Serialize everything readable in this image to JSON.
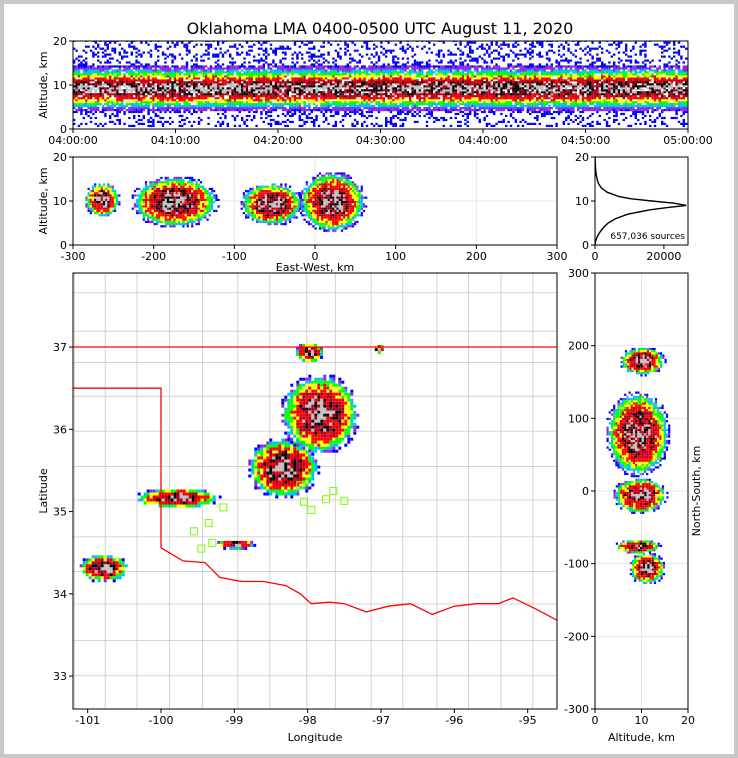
{
  "title": "Oklahoma LMA 0400-0500 UTC August 11, 2020",
  "colors": {
    "density_scale": [
      "#ffffff",
      "#0000ff",
      "#8a2be2",
      "#00bfff",
      "#00ff00",
      "#ffff00",
      "#ff0000",
      "#b00020",
      "#000000",
      "#c0c0c0"
    ],
    "state_border": "#ff0000",
    "county_border": "#c8c8c8",
    "station_marker": "#7cfc00"
  },
  "chart_data": [
    {
      "id": "time_height",
      "type": "heatmap",
      "xlabel": "",
      "ylabel": "Altitude, km",
      "xlim": [
        "04:00:00",
        "05:00:00"
      ],
      "ylim": [
        0,
        20
      ],
      "xticks": [
        "04:00:00",
        "04:10:00",
        "04:20:00",
        "04:30:00",
        "04:40:00",
        "04:50:00",
        "05:00:00"
      ],
      "yticks": [
        0,
        10,
        20
      ],
      "description_values": {
        "peak_density_altitude_km": 9,
        "source_top_km": 20
      }
    },
    {
      "id": "ew_height",
      "type": "heatmap",
      "xlabel": "East-West, km",
      "ylabel": "Altitude, km",
      "xlim": [
        -300,
        300
      ],
      "ylim": [
        0,
        20
      ],
      "xticks": [
        -300,
        -200,
        -100,
        0,
        100,
        200,
        300
      ],
      "yticks": [
        0,
        10,
        20
      ],
      "blobs": [
        {
          "x": -265,
          "y": 10.5,
          "width_km": 45,
          "height_km": 8
        },
        {
          "x": -175,
          "y": 10,
          "width_km": 110,
          "height_km": 12
        },
        {
          "x": -55,
          "y": 9.5,
          "width_km": 80,
          "height_km": 10
        },
        {
          "x": 20,
          "y": 10,
          "width_km": 85,
          "height_km": 14
        }
      ]
    },
    {
      "id": "altitude_histogram",
      "type": "line",
      "xlabel": "",
      "ylabel": "",
      "xlim": [
        0,
        27000
      ],
      "ylim": [
        0,
        20
      ],
      "xticks": [
        0,
        20000
      ],
      "yticks": [
        0,
        10,
        20
      ],
      "annotation": "657,036 sources",
      "peak": {
        "altitude_km": 9,
        "count": 26500
      },
      "series": [
        {
          "y": [
            0.2,
            1,
            2,
            3,
            4,
            5,
            6,
            7,
            8,
            8.5,
            9,
            9.5,
            10,
            10.5,
            11,
            12,
            13,
            14,
            15,
            16,
            17,
            18,
            19,
            20
          ],
          "x": [
            50,
            200,
            700,
            1500,
            2500,
            3800,
            6000,
            9500,
            16000,
            21000,
            26500,
            23000,
            16500,
            10500,
            7000,
            3500,
            1800,
            1000,
            600,
            350,
            200,
            120,
            60,
            30
          ]
        }
      ]
    },
    {
      "id": "plan_view",
      "type": "heatmap",
      "xlabel": "Longitude",
      "ylabel": "Latitude",
      "xlim": [
        -101.2,
        -94.6
      ],
      "ylim": [
        32.6,
        37.9
      ],
      "xticks": [
        -101,
        -100,
        -99,
        -98,
        -97,
        -96,
        -95
      ],
      "yticks": [
        33,
        34,
        35,
        36,
        37
      ],
      "blobs": [
        {
          "lon": -100.8,
          "lat": 34.33,
          "w": 0.7,
          "h": 0.35
        },
        {
          "lon": -99.8,
          "lat": 35.18,
          "w": 1.2,
          "h": 0.25
        },
        {
          "lon": -99.0,
          "lat": 34.62,
          "w": 0.55,
          "h": 0.12
        },
        {
          "lon": -98.35,
          "lat": 35.55,
          "w": 1.0,
          "h": 0.75
        },
        {
          "lon": -97.85,
          "lat": 36.2,
          "w": 1.1,
          "h": 1.0
        },
        {
          "lon": -98.0,
          "lat": 36.95,
          "w": 0.4,
          "h": 0.25
        },
        {
          "lon": -97.05,
          "lat": 37.0,
          "w": 0.15,
          "h": 0.12
        }
      ],
      "stations": [
        {
          "lon": -99.55,
          "lat": 34.76
        },
        {
          "lon": -99.35,
          "lat": 34.86
        },
        {
          "lon": -99.45,
          "lat": 34.55
        },
        {
          "lon": -99.3,
          "lat": 34.62
        },
        {
          "lon": -99.15,
          "lat": 35.05
        },
        {
          "lon": -98.05,
          "lat": 35.12
        },
        {
          "lon": -97.95,
          "lat": 35.02
        },
        {
          "lon": -98.1,
          "lat": 35.32
        },
        {
          "lon": -97.75,
          "lat": 35.15
        },
        {
          "lon": -97.65,
          "lat": 35.25
        },
        {
          "lon": -97.5,
          "lat": 35.13
        }
      ]
    },
    {
      "id": "ns_height",
      "type": "heatmap",
      "xlabel": "Altitude, km",
      "ylabel": "North-South, km",
      "xlim": [
        0,
        20
      ],
      "ylim": [
        -300,
        300
      ],
      "xticks": [
        0,
        10,
        20
      ],
      "yticks": [
        -300,
        -200,
        -100,
        0,
        100,
        200,
        300
      ],
      "blobs": [
        {
          "x": 10,
          "y": 180,
          "width_km": 10,
          "height_km": 40
        },
        {
          "x": 9,
          "y": 80,
          "width_km": 14,
          "height_km": 120
        },
        {
          "x": 9.5,
          "y": -5,
          "width_km": 12,
          "height_km": 50
        },
        {
          "x": 9,
          "y": -75,
          "width_km": 10,
          "height_km": 20
        },
        {
          "x": 11,
          "y": -105,
          "width_km": 8,
          "height_km": 45
        }
      ]
    }
  ]
}
